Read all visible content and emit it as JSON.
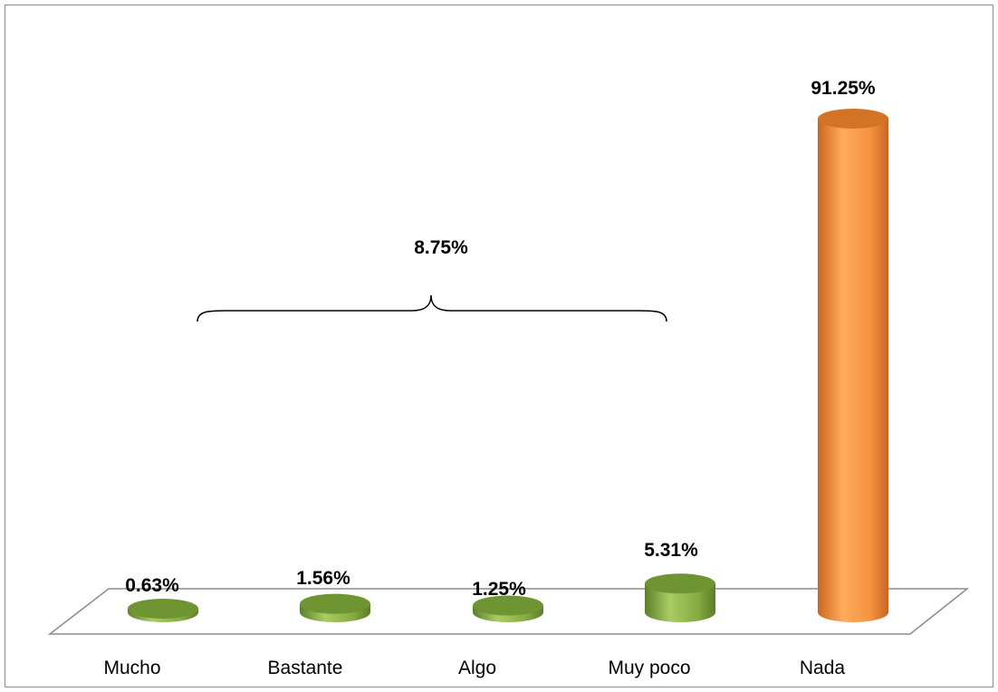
{
  "chart_data": {
    "type": "bar",
    "style": "3d-cylinder",
    "categories": [
      "Mucho",
      "Bastante",
      "Algo",
      "Muy poco",
      "Nada"
    ],
    "values": [
      0.63,
      1.56,
      1.25,
      5.31,
      91.25
    ],
    "value_labels": [
      "0.63%",
      "1.56%",
      "1.25%",
      "5.31%",
      "91.25%"
    ],
    "ylim": [
      0,
      100
    ],
    "grid": false,
    "legend": "none",
    "group_annotation": {
      "label": "8.75%",
      "spans_categories": [
        "Mucho",
        "Bastante",
        "Algo",
        "Muy poco"
      ]
    },
    "colors": {
      "green_body": "#8aae47",
      "green_top": "#6f9432",
      "orange_body": "#f4923f",
      "orange_top": "#d27326",
      "floor_stroke": "#8c8c8c"
    },
    "bar_colors": [
      "green",
      "green",
      "green",
      "green",
      "orange"
    ]
  }
}
